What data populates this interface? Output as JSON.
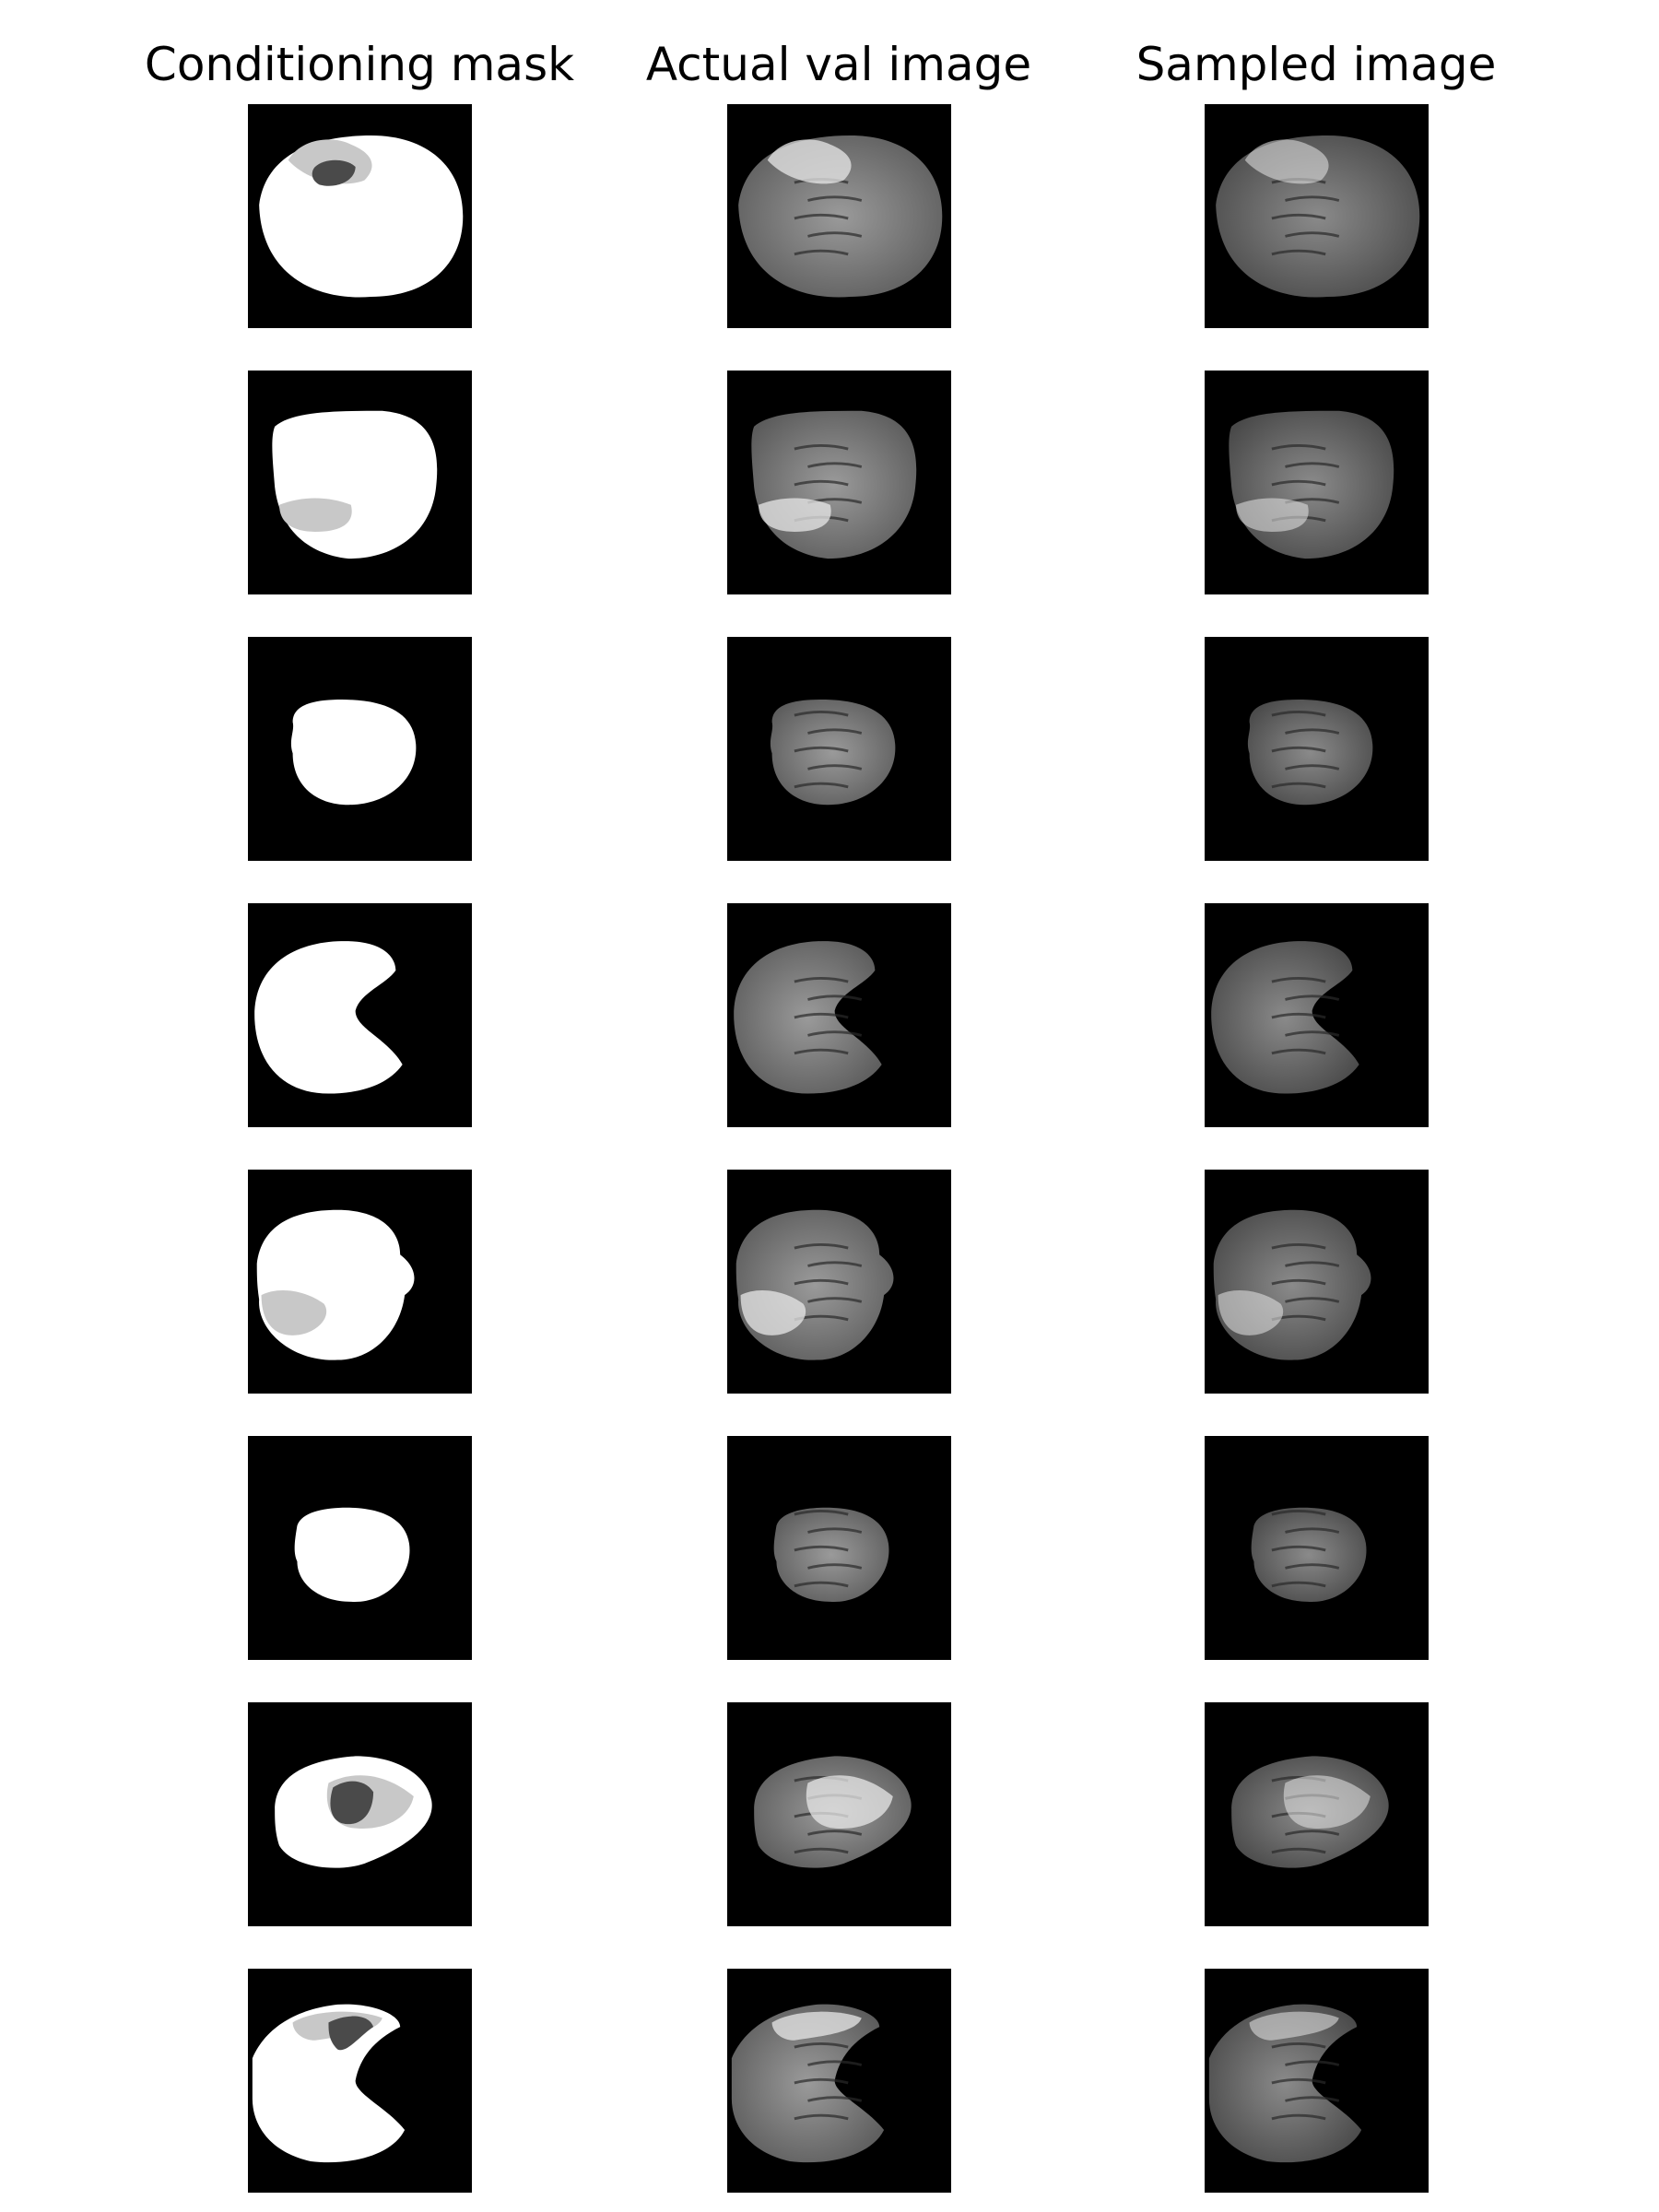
{
  "columns": [
    {
      "title": "Conditioning mask"
    },
    {
      "title": "Actual val image"
    },
    {
      "title": "Sampled image"
    }
  ],
  "rows": [
    {
      "tumor": true,
      "mask_regions": [
        "edema",
        "core"
      ]
    },
    {
      "tumor": true,
      "mask_regions": [
        "edema"
      ]
    },
    {
      "tumor": false,
      "mask_regions": []
    },
    {
      "tumor": false,
      "mask_regions": []
    },
    {
      "tumor": true,
      "mask_regions": [
        "edema"
      ]
    },
    {
      "tumor": false,
      "mask_regions": []
    },
    {
      "tumor": true,
      "mask_regions": [
        "edema",
        "core"
      ]
    },
    {
      "tumor": true,
      "mask_regions": [
        "edema",
        "core"
      ]
    }
  ],
  "colors": {
    "background": "#000000",
    "brain_mask": "#ffffff",
    "edema_mask": "#c8c8c8",
    "core_mask": "#4a4a4a"
  }
}
